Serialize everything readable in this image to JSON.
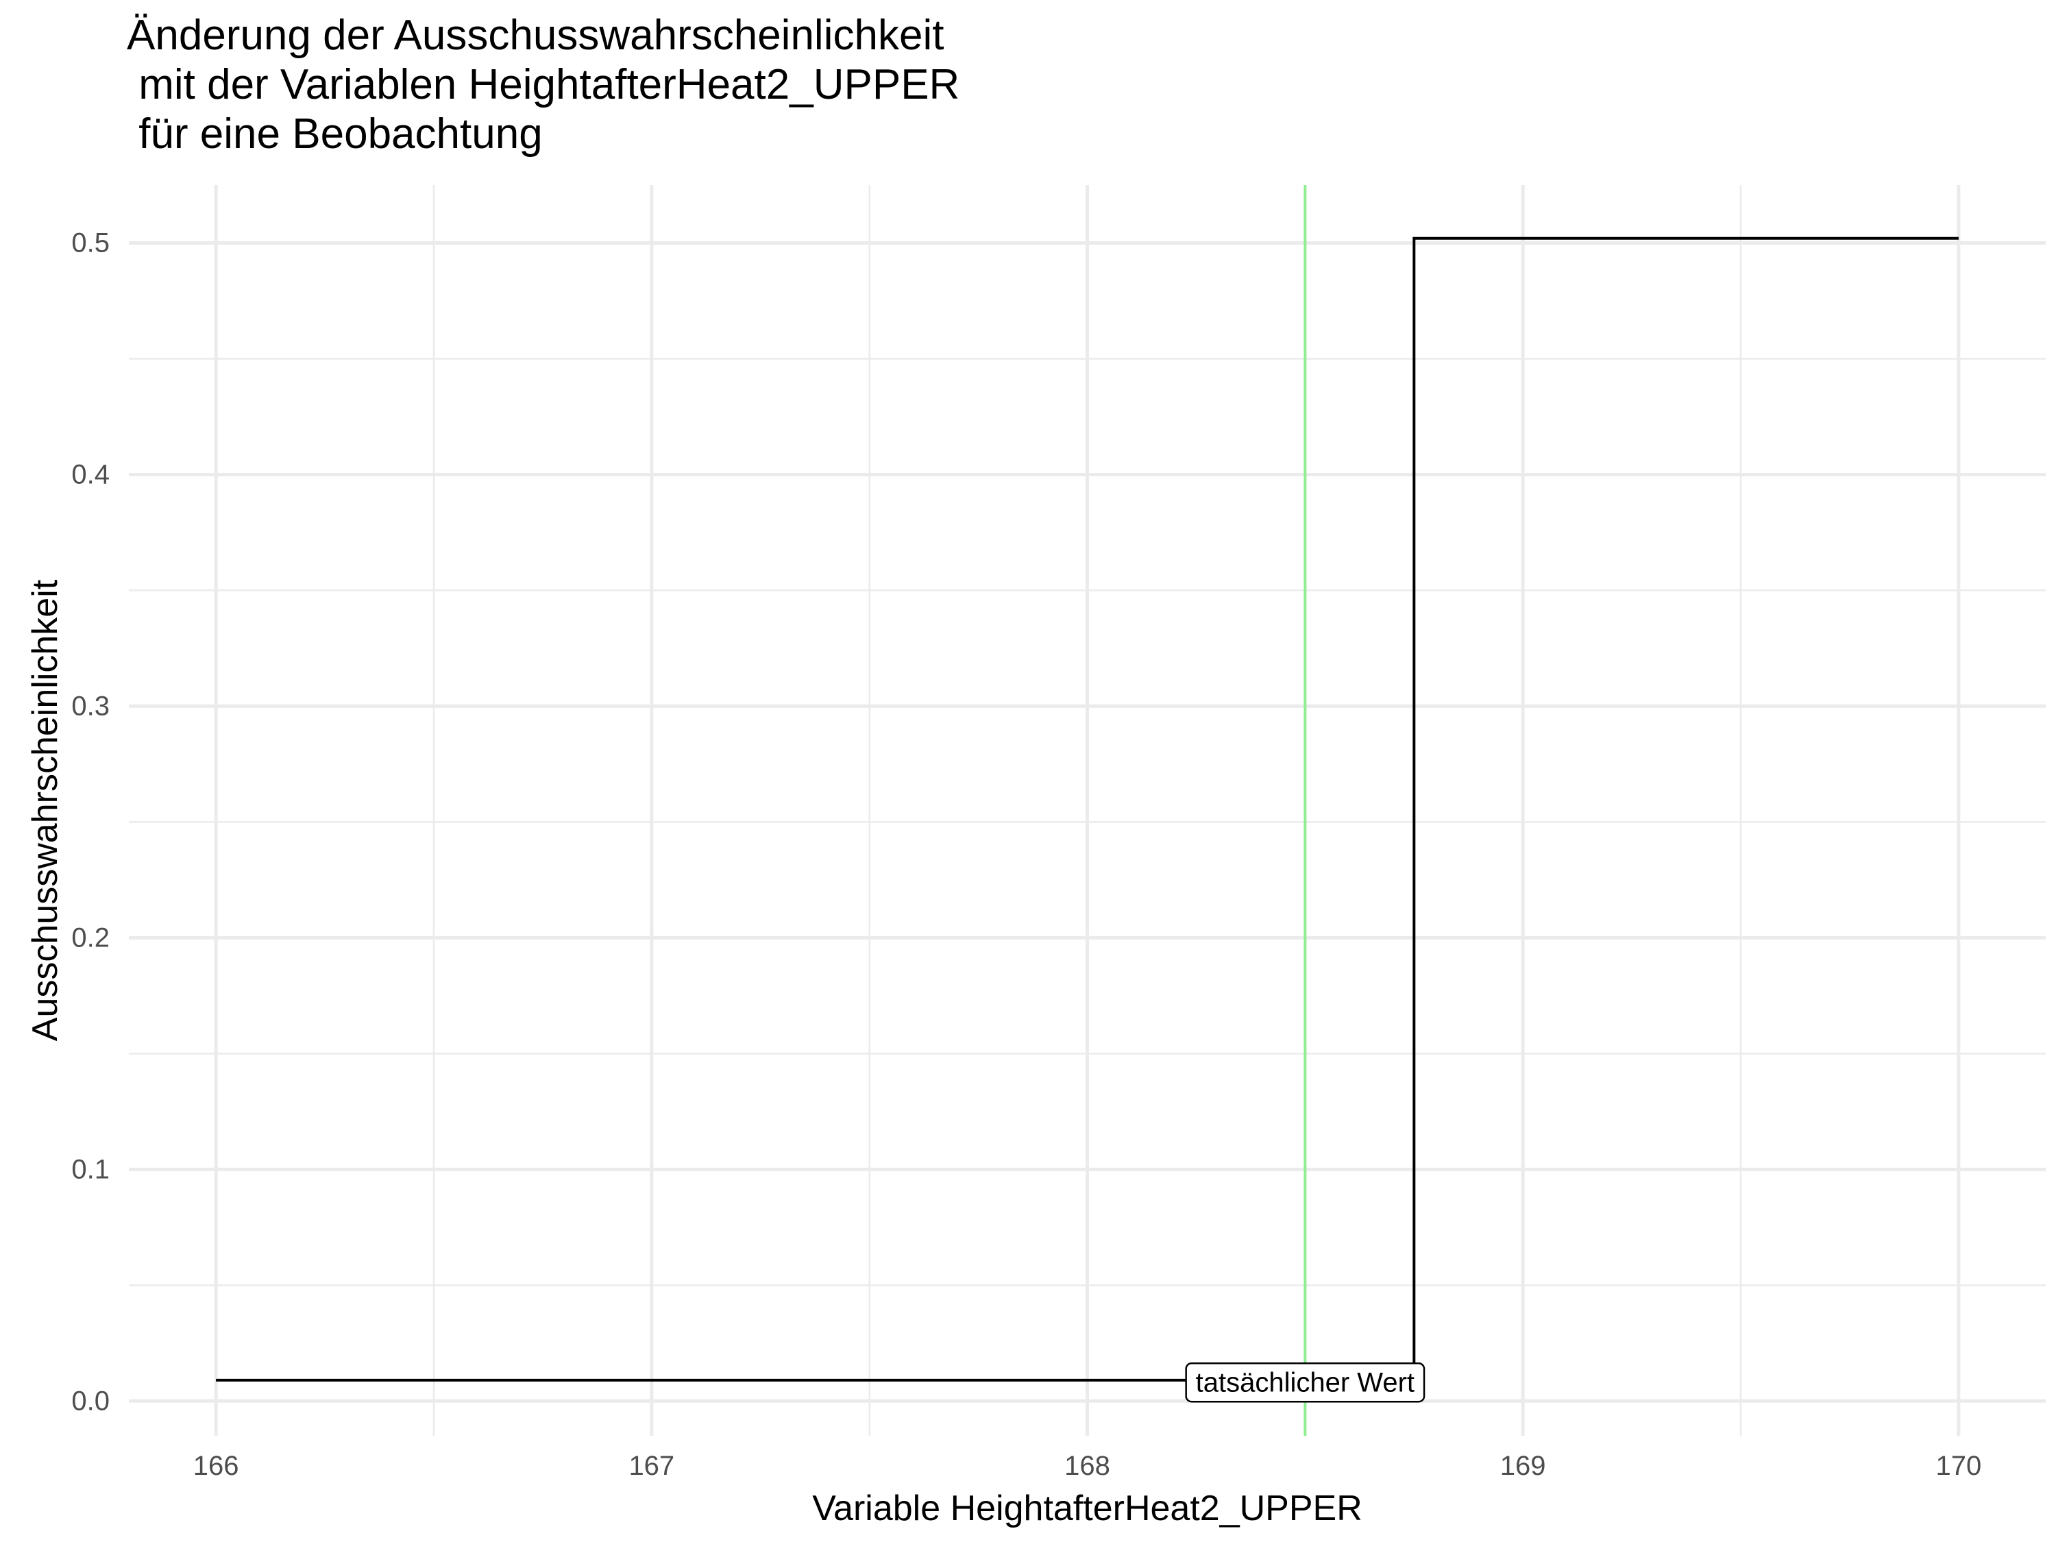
{
  "chart_data": {
    "type": "line",
    "title_lines": [
      "Änderung der Ausschusswahrscheinlichkeit",
      " mit der Variablen HeightafterHeat2_UPPER",
      " für eine Beobachtung"
    ],
    "xlabel": "Variable HeightafterHeat2_UPPER",
    "ylabel": "Ausschusswahrscheinlichkeit",
    "xlim": [
      165.8,
      170.2
    ],
    "ylim": [
      -0.015,
      0.525
    ],
    "x_ticks": [
      166,
      167,
      168,
      169,
      170
    ],
    "x_tick_labels": [
      "166",
      "167",
      "168",
      "169",
      "170"
    ],
    "x_minor_ticks": [
      166.5,
      167.5,
      168.5,
      169.5
    ],
    "y_ticks": [
      0.0,
      0.1,
      0.2,
      0.3,
      0.4,
      0.5
    ],
    "y_tick_labels": [
      "0.0",
      "0.1",
      "0.2",
      "0.3",
      "0.4",
      "0.5"
    ],
    "y_minor_ticks": [
      0.05,
      0.15,
      0.25,
      0.35,
      0.45
    ],
    "grid": true,
    "series": [
      {
        "step": true,
        "color": "#000000",
        "x": [
          166.0,
          168.75,
          168.75,
          170.0
        ],
        "y": [
          0.009,
          0.009,
          0.502,
          0.502
        ]
      }
    ],
    "reference_line": {
      "x": 168.5,
      "color": "#90ee90",
      "label": "tatsächlicher Wert",
      "label_y": 0.008
    }
  }
}
